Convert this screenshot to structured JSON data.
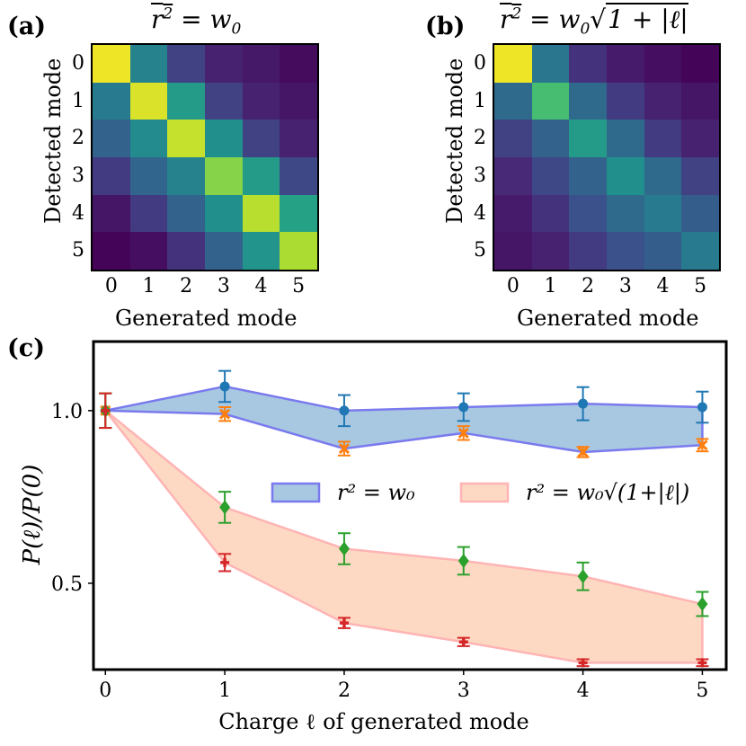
{
  "panels": {
    "a_label": "(a)",
    "b_label": "(b)",
    "c_label": "(c)"
  },
  "chart_data": [
    {
      "type": "heatmap",
      "panel": "(a)",
      "title": "r² = w₀",
      "xlabel": "Generated mode",
      "ylabel": "Detected mode",
      "x_ticks": [
        "0",
        "1",
        "2",
        "3",
        "4",
        "5"
      ],
      "y_ticks": [
        "0",
        "1",
        "2",
        "3",
        "4",
        "5"
      ],
      "colormap": "viridis",
      "values": [
        [
          0.98,
          0.45,
          0.2,
          0.1,
          0.07,
          0.03
        ],
        [
          0.42,
          0.95,
          0.55,
          0.2,
          0.1,
          0.06
        ],
        [
          0.32,
          0.48,
          0.92,
          0.5,
          0.2,
          0.1
        ],
        [
          0.18,
          0.33,
          0.45,
          0.82,
          0.55,
          0.22
        ],
        [
          0.06,
          0.18,
          0.32,
          0.5,
          0.9,
          0.58
        ],
        [
          0.01,
          0.04,
          0.15,
          0.32,
          0.52,
          0.88
        ]
      ]
    },
    {
      "type": "heatmap",
      "panel": "(b)",
      "title": "r² = w₀√(1+|ℓ|)",
      "xlabel": "Generated mode",
      "ylabel": "Detected mode",
      "x_ticks": [
        "0",
        "1",
        "2",
        "3",
        "4",
        "5"
      ],
      "y_ticks": [
        "0",
        "1",
        "2",
        "3",
        "4",
        "5"
      ],
      "colormap": "viridis",
      "values": [
        [
          0.98,
          0.4,
          0.15,
          0.08,
          0.04,
          0.01
        ],
        [
          0.35,
          0.7,
          0.35,
          0.18,
          0.1,
          0.06
        ],
        [
          0.2,
          0.32,
          0.55,
          0.35,
          0.18,
          0.1
        ],
        [
          0.12,
          0.22,
          0.32,
          0.5,
          0.35,
          0.2
        ],
        [
          0.08,
          0.15,
          0.25,
          0.35,
          0.42,
          0.3
        ],
        [
          0.06,
          0.1,
          0.18,
          0.25,
          0.3,
          0.42
        ]
      ]
    },
    {
      "type": "line",
      "panel": "(c)",
      "title": "",
      "xlabel": "Charge ℓ of generated mode",
      "ylabel": "P(ℓ)/P(0)",
      "xlim": [
        -0.1,
        5.2
      ],
      "ylim": [
        0.25,
        1.2
      ],
      "x_ticks": [
        "0",
        "1",
        "2",
        "3",
        "4",
        "5"
      ],
      "y_ticks": [
        "0.5",
        "1.0"
      ],
      "x": [
        0,
        1,
        2,
        3,
        4,
        5
      ],
      "series": [
        {
          "name": "blue-upper",
          "color": "#1f77b4",
          "marker": "circle",
          "values": [
            1.0,
            1.07,
            1.0,
            1.01,
            1.02,
            1.01
          ],
          "errors": [
            0.05,
            0.045,
            0.045,
            0.04,
            0.048,
            0.045
          ]
        },
        {
          "name": "orange-lower",
          "color": "#ff7f0e",
          "marker": "x",
          "values": [
            1.0,
            0.99,
            0.89,
            0.935,
            0.88,
            0.9
          ],
          "errors": [
            0.05,
            0.02,
            0.02,
            0.02,
            0.015,
            0.018
          ]
        },
        {
          "name": "green-upper",
          "color": "#2ca02c",
          "marker": "diamond",
          "values": [
            1.0,
            0.72,
            0.6,
            0.565,
            0.52,
            0.44
          ],
          "errors": [
            0.05,
            0.045,
            0.045,
            0.04,
            0.04,
            0.035
          ]
        },
        {
          "name": "red-lower",
          "color": "#d62728",
          "marker": "plus",
          "values": [
            1.0,
            0.56,
            0.385,
            0.33,
            0.27,
            0.27
          ],
          "errors": [
            0.05,
            0.025,
            0.015,
            0.012,
            0.01,
            0.01
          ]
        }
      ],
      "bands": [
        {
          "label": "r² = w₀",
          "upper": "blue-upper",
          "lower": "orange-lower",
          "fill": "#a8c8e2",
          "edge": "#7a7aee"
        },
        {
          "label": "r² = w₀√(1+|ℓ|)",
          "upper": "green-upper",
          "lower": "red-lower",
          "fill": "#fdd9c4",
          "edge": "#ffb4b4"
        }
      ],
      "legend_position": "center-right"
    }
  ]
}
